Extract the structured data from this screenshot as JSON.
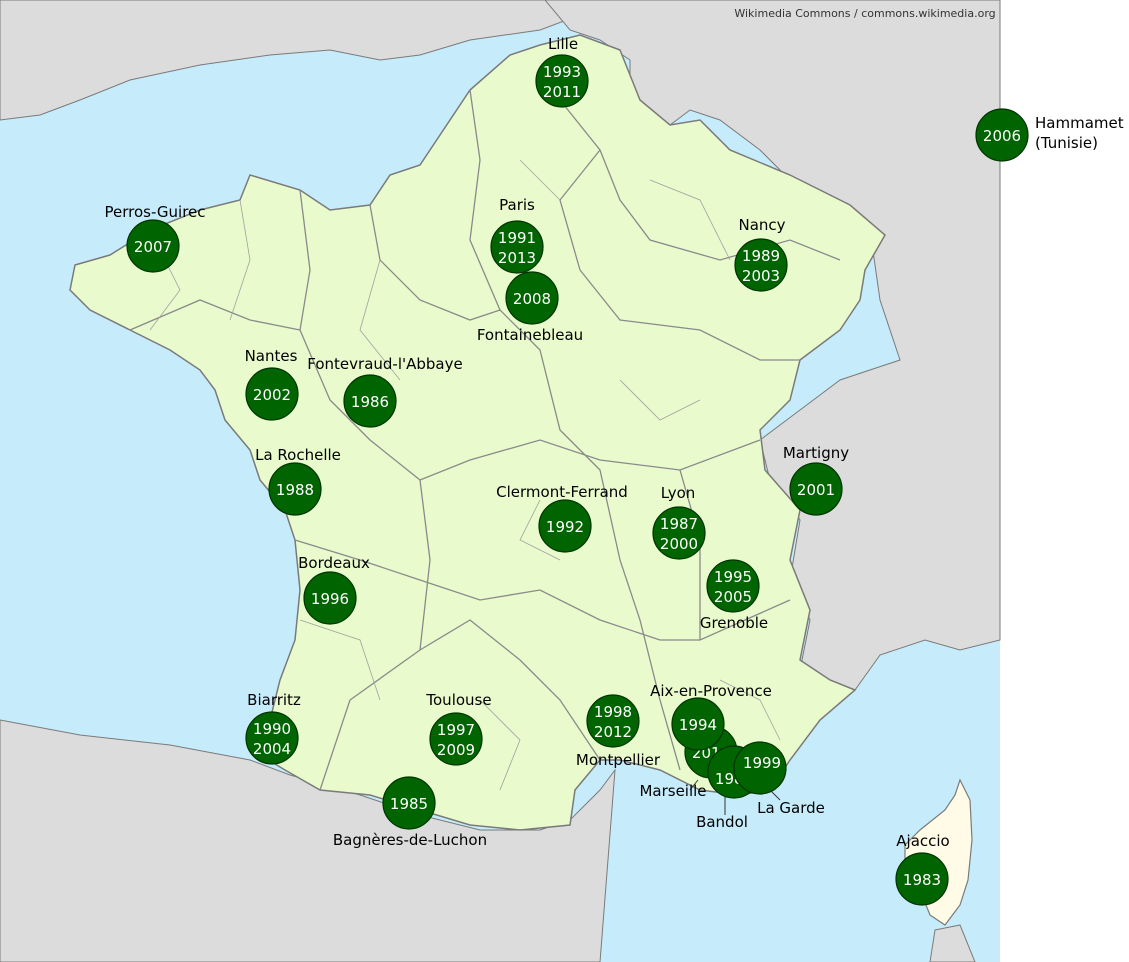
{
  "credit": "Wikimedia Commons / commons.wikimedia.org",
  "colors": {
    "sea": "#c6ecfb",
    "land_foreign": "#dcdcdc",
    "france": "#e9fbcd",
    "corsica": "#fffbe6",
    "border": "#7a7a7a",
    "marker": "#006400"
  },
  "sites": [
    {
      "name": "Lille",
      "years": [
        "1993",
        "2011"
      ]
    },
    {
      "name": "Hammamet",
      "name_line2": "(Tunisie)",
      "years": [
        "2006"
      ]
    },
    {
      "name": "Perros-Guirec",
      "years": [
        "2007"
      ]
    },
    {
      "name": "Paris",
      "years": [
        "1991",
        "2013"
      ]
    },
    {
      "name": "Fontainebleau",
      "years": [
        "2008"
      ]
    },
    {
      "name": "Nancy",
      "years": [
        "1989",
        "2003"
      ]
    },
    {
      "name": "Nantes",
      "years": [
        "2002"
      ]
    },
    {
      "name": "Fontevraud-l'Abbaye",
      "years": [
        "1986"
      ]
    },
    {
      "name": "La Rochelle",
      "years": [
        "1988"
      ]
    },
    {
      "name": "Martigny",
      "years": [
        "2001"
      ]
    },
    {
      "name": "Clermont-Ferrand",
      "years": [
        "1992"
      ]
    },
    {
      "name": "Lyon",
      "years": [
        "1987",
        "2000"
      ]
    },
    {
      "name": "Bordeaux",
      "years": [
        "1996"
      ]
    },
    {
      "name": "Grenoble",
      "years": [
        "1995",
        "2005"
      ]
    },
    {
      "name": "Aix-en-Provence",
      "years": [
        "1994"
      ]
    },
    {
      "name": "Biarritz",
      "years": [
        "1990",
        "2004"
      ]
    },
    {
      "name": "Toulouse",
      "years": [
        "1997",
        "2009"
      ]
    },
    {
      "name": "Montpellier",
      "years": [
        "1998",
        "2012"
      ]
    },
    {
      "name": "Marseille",
      "years": [
        "2010"
      ]
    },
    {
      "name": "La Garde",
      "years": [
        "1999"
      ]
    },
    {
      "name": "Bandol",
      "years": [
        "1984"
      ]
    },
    {
      "name": "Bagnères-de-Luchon",
      "years": [
        "1985"
      ]
    },
    {
      "name": "Ajaccio",
      "years": [
        "1983"
      ]
    }
  ]
}
